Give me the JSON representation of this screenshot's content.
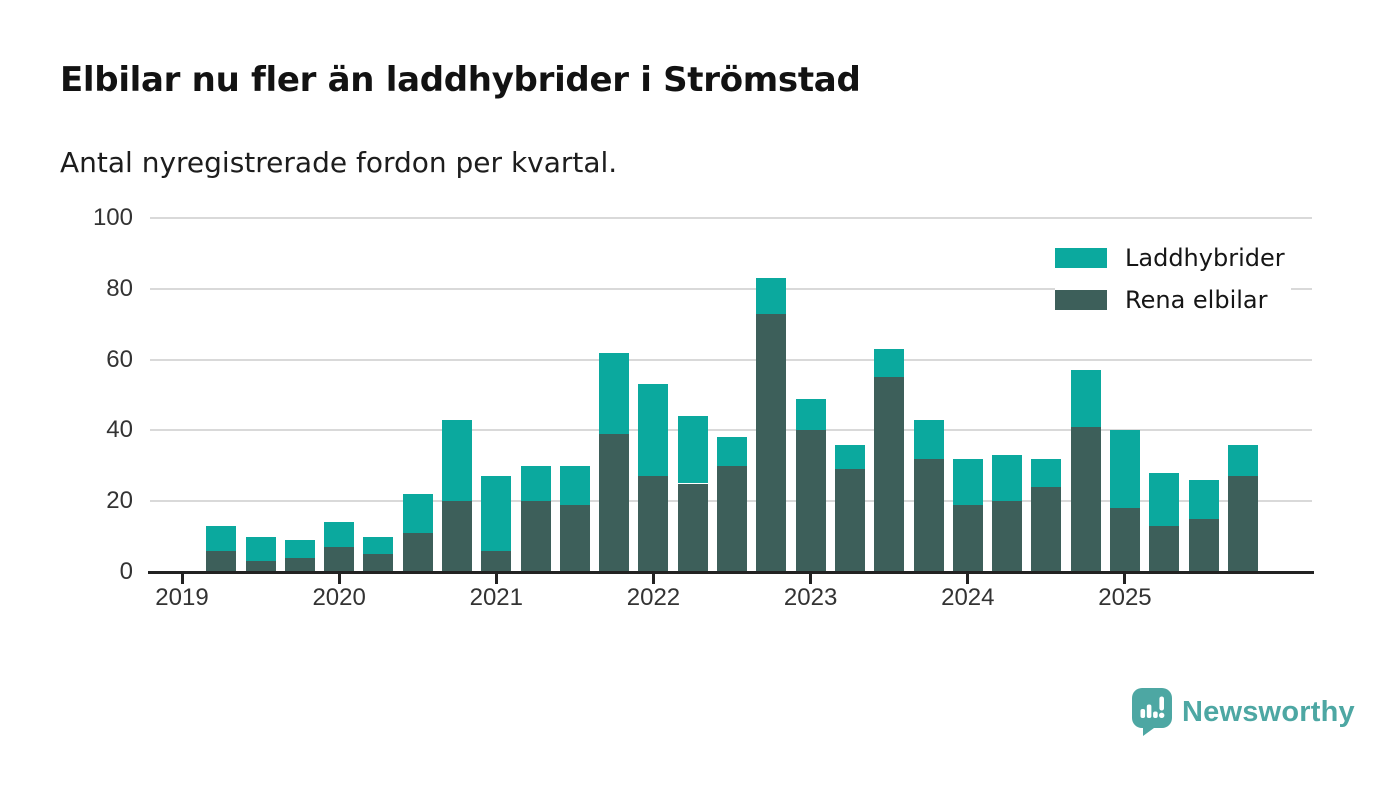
{
  "header": {
    "title": "Elbilar nu fler än laddhybrider i Strömstad",
    "subtitle": "Antal nyregistrerade fordon per kvartal."
  },
  "legend": {
    "items": [
      {
        "label": "Laddhybrider",
        "color": "#0ba99e"
      },
      {
        "label": "Rena elbilar",
        "color": "#3d5f5a"
      }
    ]
  },
  "chart_data": {
    "type": "bar",
    "stacked": true,
    "title": "Elbilar nu fler än laddhybrider i Strömstad",
    "subtitle": "Antal nyregistrerade fordon per kvartal.",
    "categories": [
      "2019 Q2",
      "2019 Q3",
      "2019 Q4",
      "2020 Q1",
      "2020 Q2",
      "2020 Q3",
      "2020 Q4",
      "2021 Q1",
      "2021 Q2",
      "2021 Q3",
      "2021 Q4",
      "2022 Q1",
      "2022 Q2",
      "2022 Q3",
      "2022 Q4",
      "2023 Q1",
      "2023 Q2",
      "2023 Q3",
      "2023 Q4",
      "2024 Q1",
      "2024 Q2",
      "2024 Q3",
      "2024 Q4",
      "2025 Q1",
      "2025 Q2",
      "2025 Q3",
      "2025 Q4"
    ],
    "series": [
      {
        "name": "Rena elbilar",
        "color": "#3d5f5a",
        "values": [
          6,
          3,
          4,
          7,
          5,
          11,
          20,
          6,
          20,
          19,
          39,
          27,
          25,
          30,
          73,
          40,
          29,
          55,
          32,
          19,
          20,
          24,
          41,
          18,
          13,
          15,
          27
        ]
      },
      {
        "name": "Laddhybrider",
        "color": "#0ba99e",
        "values": [
          7,
          7,
          5,
          7,
          5,
          11,
          23,
          21,
          10,
          11,
          23,
          26,
          19,
          8,
          10,
          9,
          7,
          8,
          11,
          13,
          13,
          8,
          16,
          22,
          15,
          11,
          9
        ]
      }
    ],
    "totals": [
      13,
      10,
      9,
      14,
      10,
      22,
      43,
      27,
      30,
      30,
      62,
      53,
      44,
      38,
      83,
      49,
      36,
      63,
      43,
      32,
      33,
      32,
      57,
      40,
      28,
      26,
      36
    ],
    "x_tick_labels": [
      "2019",
      "2020",
      "2021",
      "2022",
      "2023",
      "2024",
      "2025"
    ],
    "y_ticks": [
      0,
      20,
      40,
      60,
      80,
      100
    ],
    "ylim": [
      0,
      100
    ],
    "grid": "horizontal",
    "legend_position": "top-right",
    "xlabel": "",
    "ylabel": ""
  },
  "footer": {
    "brand": "Newsworthy"
  },
  "colors": {
    "laddhybrider": "#0ba99e",
    "rena_elbilar": "#3d5f5a",
    "grid": "#d9d9d9",
    "axis": "#222222",
    "text": "#121212",
    "tick_text": "#333333",
    "logo": "#4da7a3",
    "background": "#ffffff"
  }
}
